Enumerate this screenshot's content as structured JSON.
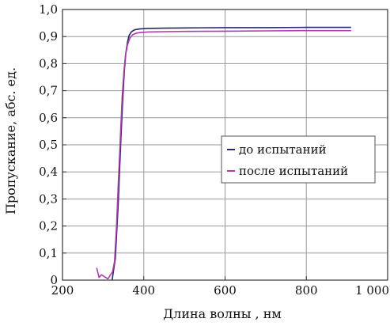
{
  "chart_data": {
    "type": "line",
    "title": "",
    "xlabel": "Длина волны , нм",
    "ylabel": "Пропускание, абс. ед.",
    "xlim": [
      200,
      1000
    ],
    "ylim": [
      0,
      1.0
    ],
    "x_ticks": [
      200,
      400,
      600,
      800,
      1000
    ],
    "x_tick_labels": [
      "200",
      "400",
      "600",
      "800",
      "1 000"
    ],
    "y_ticks": [
      0,
      0.1,
      0.2,
      0.3,
      0.4,
      0.5,
      0.6,
      0.7,
      0.8,
      0.9,
      1.0
    ],
    "y_tick_labels": [
      "0",
      "0,1",
      "0,2",
      "0,3",
      "0,4",
      "0,5",
      "0,6",
      "0,7",
      "0,8",
      "0,9",
      "1,0"
    ],
    "grid": true,
    "legend_position": "center-right",
    "series": [
      {
        "name": "до испытаний",
        "color": "#2b2570",
        "x": [
          322,
          330,
          337,
          343,
          348,
          352,
          356,
          360,
          364,
          370,
          378,
          390,
          410,
          450,
          500,
          600,
          700,
          800,
          910
        ],
        "y": [
          0.0,
          0.08,
          0.28,
          0.5,
          0.66,
          0.77,
          0.84,
          0.88,
          0.905,
          0.918,
          0.925,
          0.928,
          0.93,
          0.931,
          0.932,
          0.933,
          0.933,
          0.934,
          0.934
        ]
      },
      {
        "name": "после испытаний",
        "color": "#b03ab0",
        "x": [
          284,
          290,
          296,
          304,
          312,
          318,
          323,
          328,
          333,
          338,
          343,
          347,
          351,
          355,
          360,
          366,
          372,
          380,
          392,
          410,
          450,
          500,
          600,
          700,
          800,
          910
        ],
        "y": [
          0.045,
          0.01,
          0.02,
          0.012,
          0.005,
          0.02,
          0.03,
          0.07,
          0.2,
          0.38,
          0.55,
          0.68,
          0.77,
          0.83,
          0.87,
          0.895,
          0.906,
          0.912,
          0.915,
          0.917,
          0.918,
          0.919,
          0.92,
          0.921,
          0.922,
          0.922
        ]
      }
    ]
  }
}
